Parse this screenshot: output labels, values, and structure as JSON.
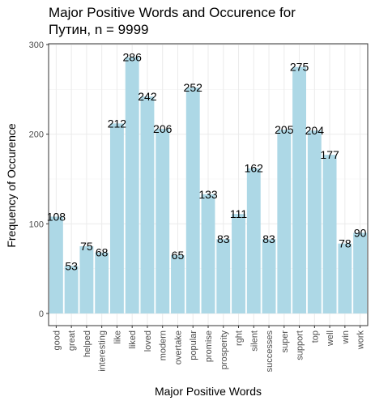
{
  "chart_data": {
    "type": "bar",
    "title": "Major Positive Words and Occurence for\nПутин, n = 9999",
    "xlabel": "Major Positive Words",
    "ylabel": "Frequency of Occurence",
    "ylim": [
      0,
      300
    ],
    "yticks": [
      0,
      100,
      200,
      300
    ],
    "grid": true,
    "bar_color": "#add8e6",
    "categories": [
      "good",
      "great",
      "helped",
      "interesting",
      "like",
      "liked",
      "loved",
      "modern",
      "overtake",
      "popular",
      "promise",
      "prosperity",
      "rght",
      "silent",
      "successes",
      "super",
      "support",
      "top",
      "well",
      "win",
      "work"
    ],
    "values": [
      108,
      53,
      75,
      68,
      212,
      286,
      242,
      206,
      65,
      252,
      133,
      83,
      111,
      162,
      83,
      205,
      275,
      204,
      177,
      78,
      90
    ]
  }
}
